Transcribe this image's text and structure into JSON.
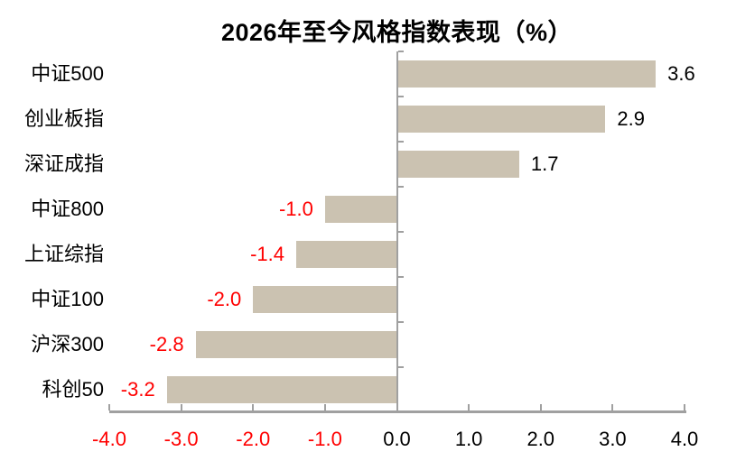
{
  "chart_data": {
    "type": "bar",
    "orientation": "horizontal",
    "title": "2026年至今风格指数表现（%）",
    "categories": [
      "中证500",
      "创业板指",
      "深证成指",
      "中证800",
      "上证综指",
      "中证100",
      "沪深300",
      "科创50"
    ],
    "values": [
      3.6,
      2.9,
      1.7,
      -1.0,
      -1.4,
      -2.0,
      -2.8,
      -3.2
    ],
    "value_labels": [
      "3.6",
      "2.9",
      "1.7",
      "-1.0",
      "-1.4",
      "-2.0",
      "-2.8",
      "-3.2"
    ],
    "xlim": [
      -4.0,
      4.0
    ],
    "x_ticks": [
      {
        "label": "-4.0",
        "value": -4.0
      },
      {
        "label": "-3.0",
        "value": -3.0
      },
      {
        "label": "-2.0",
        "value": -2.0
      },
      {
        "label": "-1.0",
        "value": -1.0
      },
      {
        "label": "0.0",
        "value": 0.0
      },
      {
        "label": "1.0",
        "value": 1.0
      },
      {
        "label": "2.0",
        "value": 2.0
      },
      {
        "label": "3.0",
        "value": 3.0
      },
      {
        "label": "4.0",
        "value": 4.0
      }
    ],
    "grid": false,
    "legend": "none",
    "colors": {
      "bar": "#CBC2B1",
      "axis": "#A0A0A0",
      "negative_text": "#FF0000",
      "positive_text": "#000000",
      "title_text": "#000000",
      "background": "#FFFFFF"
    }
  }
}
